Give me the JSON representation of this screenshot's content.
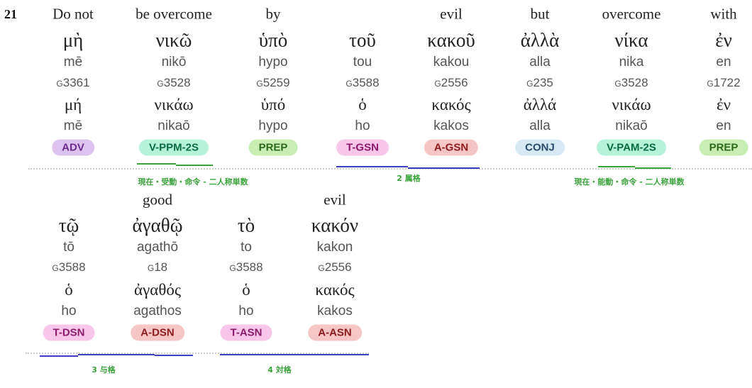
{
  "verse": "21",
  "rows": [
    {
      "words": [
        {
          "english": "Do not",
          "greek": "μὴ",
          "translit": "mē",
          "strong": "G3361",
          "lemma": "μή",
          "lemma_translit": "mē",
          "tag": "ADV",
          "tag_bg": "#dcc3ee",
          "tag_fg": "#6b2d8f"
        },
        {
          "english": "be overcome",
          "greek": "νικῶ",
          "translit": "nikō",
          "strong": "G3528",
          "lemma": "νικάω",
          "lemma_translit": "nikaō",
          "tag": "V-PPM-2S",
          "tag_bg": "#b6f2da",
          "tag_fg": "#0b6b41"
        },
        {
          "english": "by",
          "greek": "ὑπὸ",
          "translit": "hypo",
          "strong": "G5259",
          "lemma": "ὑπό",
          "lemma_translit": "hypo",
          "tag": "PREP",
          "tag_bg": "#c8eeb4",
          "tag_fg": "#2d6b1c"
        },
        {
          "english": null,
          "greek": "τοῦ",
          "translit": "tou",
          "strong": "G3588",
          "lemma": "ὁ",
          "lemma_translit": "ho",
          "tag": "T-GSN",
          "tag_bg": "#f7c6e8",
          "tag_fg": "#8c1b6c"
        },
        {
          "english": "evil",
          "greek": "κακοῦ",
          "translit": "kakou",
          "strong": "G2556",
          "lemma": "κακός",
          "lemma_translit": "kakos",
          "tag": "A-GSN",
          "tag_bg": "#f6c6c6",
          "tag_fg": "#8c1b1b"
        },
        {
          "english": "but",
          "greek": "ἀλλὰ",
          "translit": "alla",
          "strong": "G235",
          "lemma": "ἀλλά",
          "lemma_translit": "alla",
          "tag": "CONJ",
          "tag_bg": "#d6e8f2",
          "tag_fg": "#2b4b6b"
        },
        {
          "english": "overcome",
          "greek": "νίκα",
          "translit": "nika",
          "strong": "G3528",
          "lemma": "νικάω",
          "lemma_translit": "nikaō",
          "tag": "V-PAM-2S",
          "tag_bg": "#b6f2da",
          "tag_fg": "#0b6b41"
        },
        {
          "english": "with",
          "greek": "ἐν",
          "translit": "en",
          "strong": "G1722",
          "lemma": "ἐν",
          "lemma_translit": "en",
          "tag": "PREP",
          "tag_bg": "#c8eeb4",
          "tag_fg": "#2d6b1c"
        }
      ],
      "annotations": [
        "現在・受動・命令 - 二人称単数",
        "2 属格",
        "現在・能動・命令 - 二人称単数"
      ]
    },
    {
      "words": [
        {
          "english": null,
          "greek": "τῷ",
          "translit": "tō",
          "strong": "G3588",
          "lemma": "ὁ",
          "lemma_translit": "ho",
          "tag": "T-DSN",
          "tag_bg": "#f7c6e8",
          "tag_fg": "#8c1b6c"
        },
        {
          "english": "good",
          "greek": "ἀγαθῷ",
          "translit": "agathō",
          "strong": "G18",
          "lemma": "ἀγαθός",
          "lemma_translit": "agathos",
          "tag": "A-DSN",
          "tag_bg": "#f6c6c6",
          "tag_fg": "#8c1b1b"
        },
        {
          "english": null,
          "greek": "τὸ",
          "translit": "to",
          "strong": "G3588",
          "lemma": "ὁ",
          "lemma_translit": "ho",
          "tag": "T-ASN",
          "tag_bg": "#f7c6e8",
          "tag_fg": "#8c1b6c"
        },
        {
          "english": "evil",
          "greek": "κακόν",
          "translit": "kakon",
          "strong": "G2556",
          "lemma": "κακός",
          "lemma_translit": "kakos",
          "tag": "A-ASN",
          "tag_bg": "#f6c6c6",
          "tag_fg": "#8c1b1b"
        }
      ],
      "annotations": [
        "3 与格",
        "4 対格"
      ]
    }
  ]
}
